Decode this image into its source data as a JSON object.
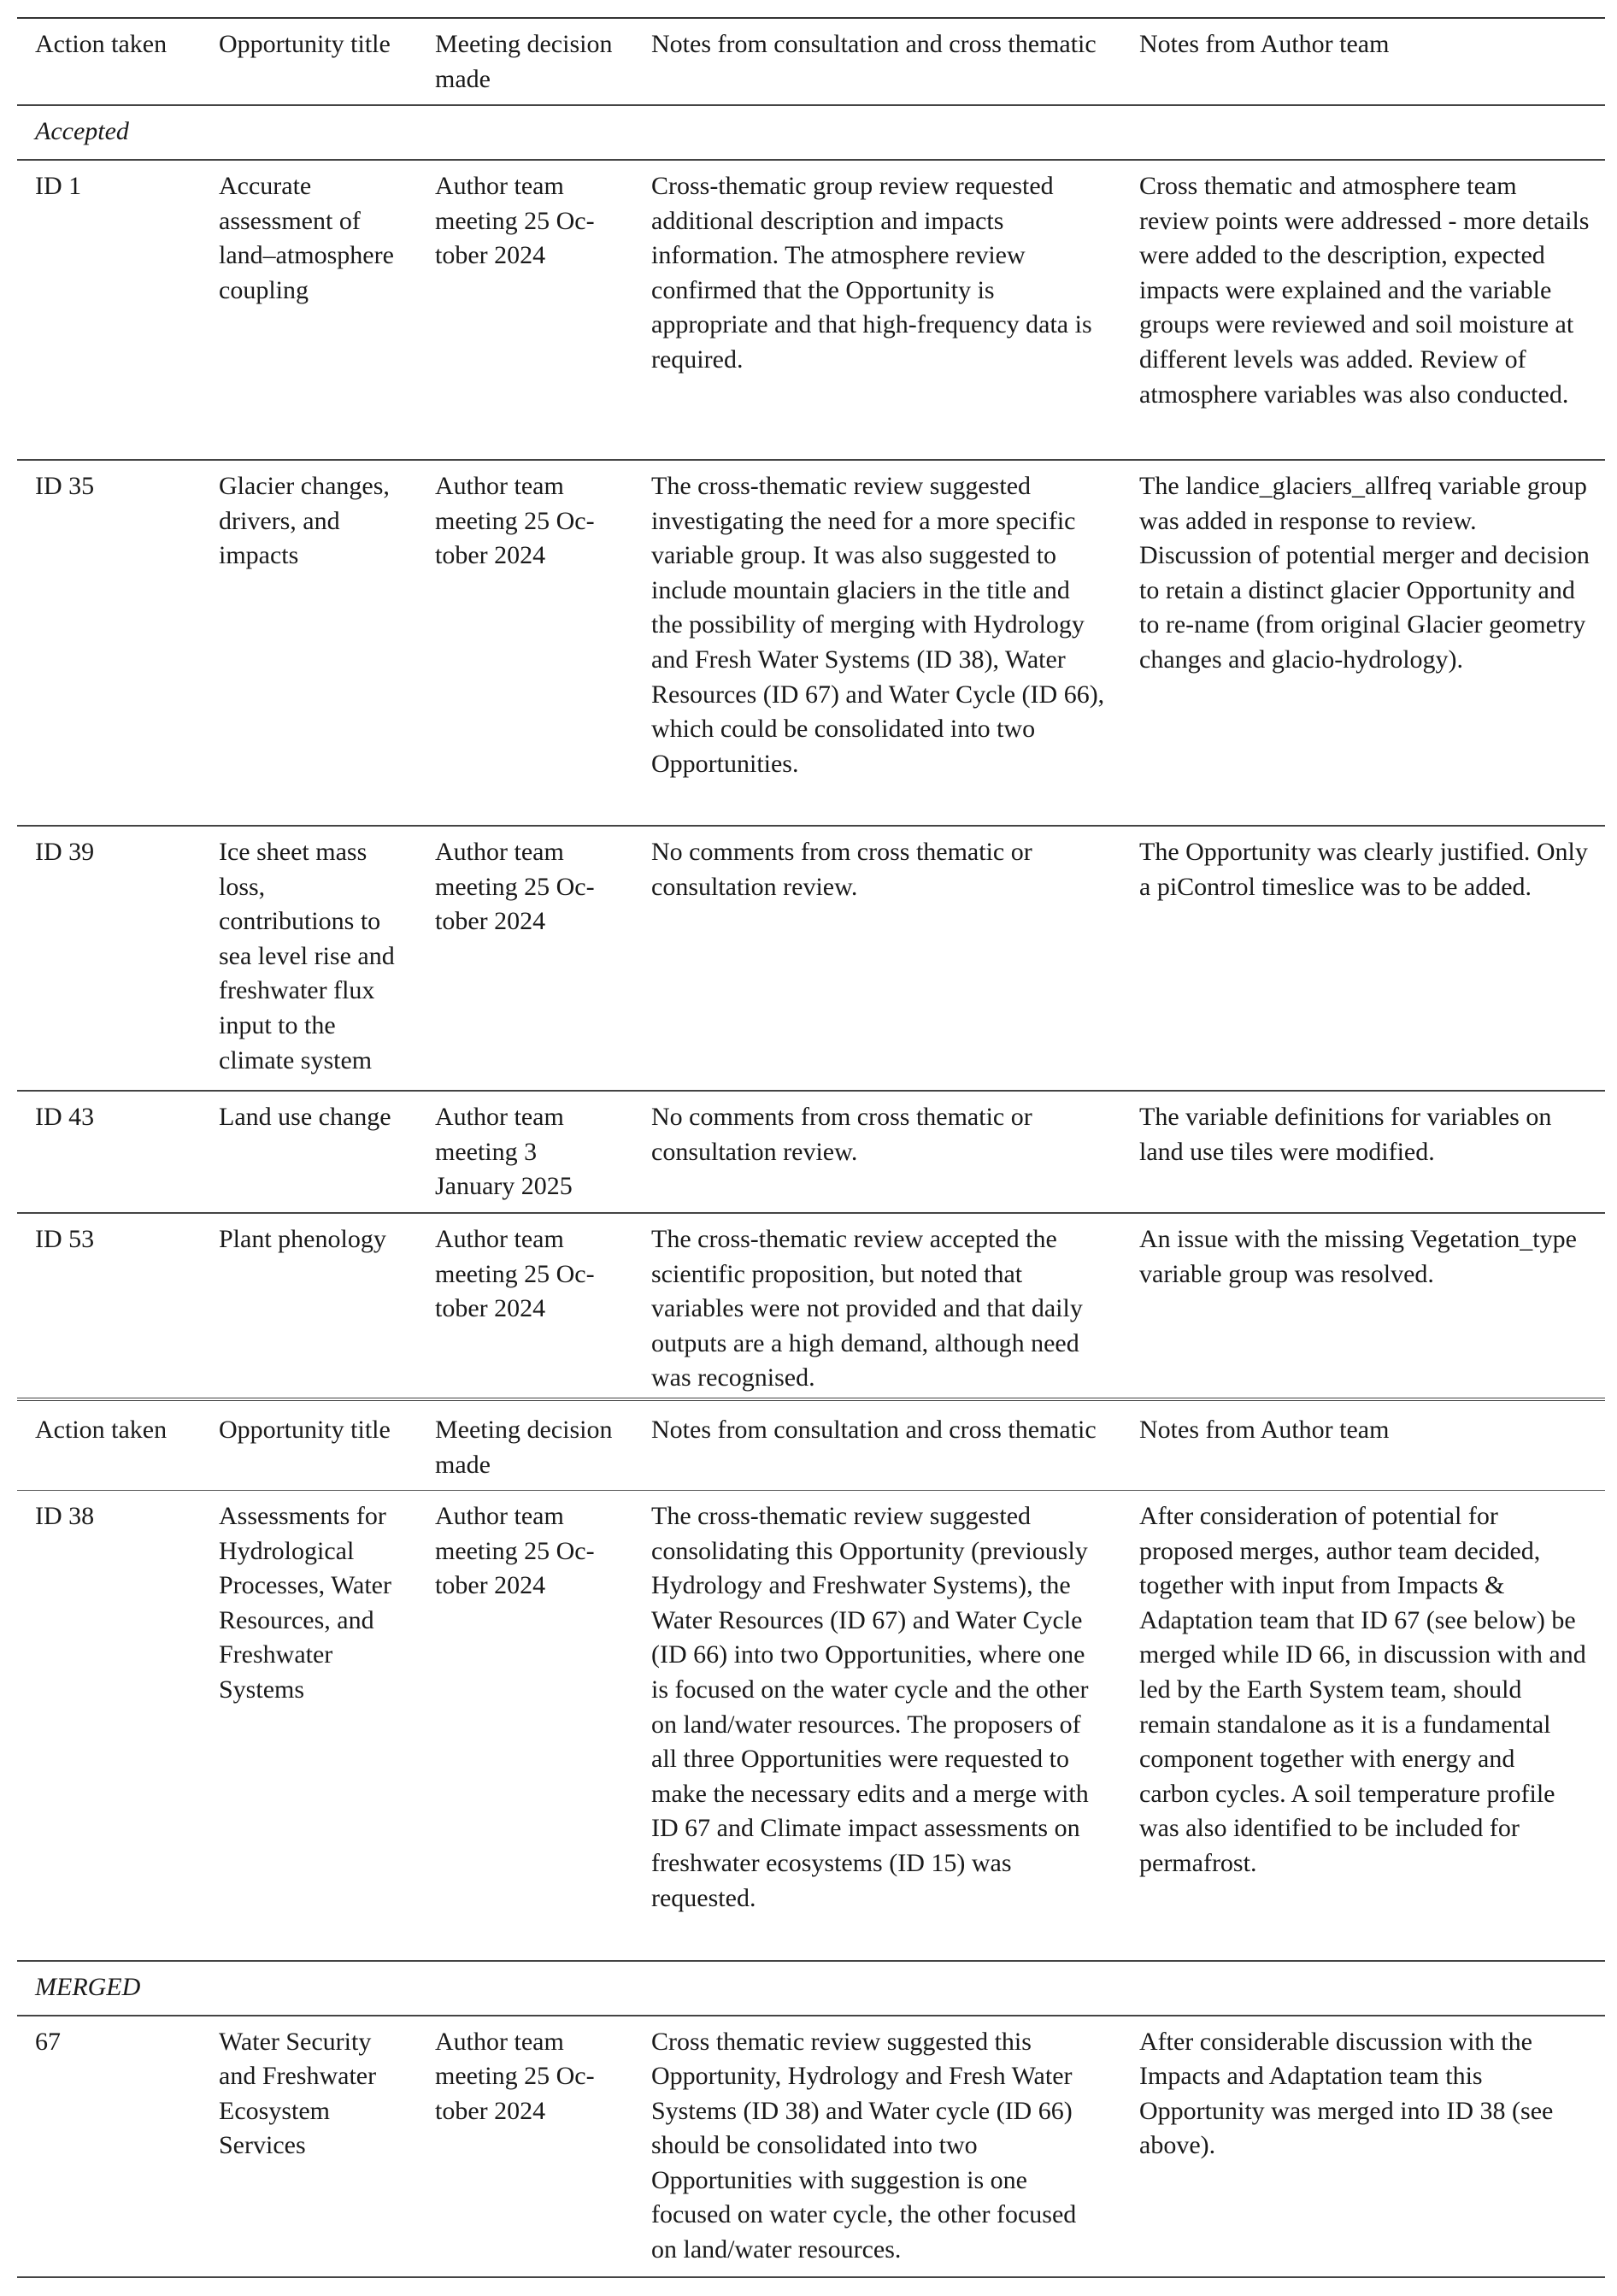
{
  "header": [
    "Action taken",
    "Opportunity title",
    "Meeting decision made",
    "Notes from consultation and cross thematic",
    "Notes from Author team"
  ],
  "table1": {
    "section": "Accepted",
    "rows": [
      {
        "id": "ID 1",
        "title": "Accurate assessment of land–atmosphere coupling",
        "meeting": "Author team meeting 25 Oc-tober 2024",
        "consultation": "Cross-thematic group review requested additional description and impacts information. The atmosphere review confirmed that the Opportunity is appropriate and that high-frequency data is required.",
        "author": "Cross thematic and atmosphere team review points were addressed - more details were added to the description, expected impacts were explained and the variable groups were reviewed and soil moisture at different levels was added. Review of atmosphere variables was also conducted."
      },
      {
        "id": "ID 35",
        "title": "Glacier changes, drivers, and impacts",
        "meeting": "Author team meeting 25 Oc-tober 2024",
        "consultation": "The cross-thematic review suggested investigating the need for a more specific variable group. It was also suggested to include mountain glaciers in the title and the possibility of merging with Hydrology and Fresh Water Systems (ID 38), Water Resources (ID 67) and Water Cycle (ID 66), which could be consolidated into two Opportunities.",
        "author": "The landice_glaciers_allfreq variable group was added in response to review. Discussion of potential merger and decision to retain a distinct glacier Opportunity and to re-name (from original Glacier geometry changes and glacio-hydrology)."
      },
      {
        "id": "ID 39",
        "title": "Ice sheet mass loss, contributions to sea level rise and freshwater flux input to the climate system",
        "meeting": "Author team meeting 25 Oc-tober 2024",
        "consultation": "No comments from cross thematic or consultation review.",
        "author": "The Opportunity was clearly justified. Only a piControl timeslice was to be added."
      },
      {
        "id": "ID 43",
        "title": "Land use change",
        "meeting": "Author team meeting 3 January 2025",
        "consultation": "No comments from cross thematic or consultation review.",
        "author": "The variable definitions for variables on land use tiles were modified."
      },
      {
        "id": "ID 53",
        "title": "Plant phenology",
        "meeting": "Author team meeting 25 Oc-tober 2024",
        "consultation": "The cross-thematic review accepted the scientific proposition, but noted that variables were not provided and that daily outputs are a high demand, although need was recognised.",
        "author": "An issue with the missing Vegetation_type variable group was resolved."
      }
    ]
  },
  "table2": {
    "row1": {
      "id": "ID 38",
      "title": "Assessments for Hydrological Processes, Water Resources, and Freshwater Systems",
      "meeting": "Author team meeting 25 Oc-tober 2024",
      "consultation": "The cross-thematic review suggested consolidating this Opportunity (previously Hydrology and Freshwater Systems), the Water Resources (ID 67) and Water Cycle (ID 66) into two Opportunities, where one is focused on the water cycle and the other on land/water resources. The proposers of all three Opportunities were requested to make the necessary edits and a merge with ID 67 and Climate impact assessments on freshwater ecosystems (ID 15) was requested.",
      "author": "After consideration of potential for proposed merges, author team decided, together with input from Impacts & Adaptation team that ID 67 (see below) be merged while ID 66, in discussion with and led by the Earth System team, should remain standalone as it is a fundamental component together with energy and carbon cycles. A soil temperature profile was also identified to be included for permafrost."
    },
    "section": "MERGED",
    "row2": {
      "id": "67",
      "title": "Water Security and Freshwater Ecosystem Services",
      "meeting": "Author team meeting 25 Oc-tober 2024",
      "consultation": "Cross thematic review suggested this Opportunity, Hydrology and Fresh Water Systems (ID 38) and Water cycle (ID 66) should be consolidated into two Opportunities with suggestion is one focused on water cycle, the other focused on land/water resources.",
      "author": "After considerable discussion with the Impacts and Adaptation team this Opportunity was merged into ID 38 (see above)."
    }
  }
}
